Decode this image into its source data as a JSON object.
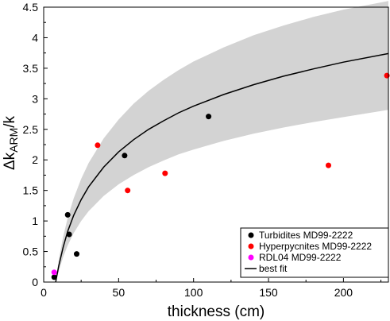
{
  "chart_data": {
    "type": "scatter",
    "xlabel": "thickness (cm)",
    "ylabel": "Δk",
    "ylabel_subscript": "ARM",
    "ylabel_suffix": "/k",
    "xlim": [
      0,
      230
    ],
    "ylim": [
      0,
      4.5
    ],
    "xticks": [
      "0",
      "50",
      "100",
      "150",
      "200"
    ],
    "yticks": [
      "0",
      "0.5",
      "1",
      "1.5",
      "2",
      "2.5",
      "3",
      "3.5",
      "4",
      "4.5"
    ],
    "grid": false,
    "legend_position": "bottom-right",
    "series": [
      {
        "name": "Turbidites MD99-2222",
        "color": "#000000",
        "points": [
          [
            7,
            0.08
          ],
          [
            16,
            1.1
          ],
          [
            17,
            0.78
          ],
          [
            22,
            0.46
          ],
          [
            54,
            2.07
          ],
          [
            110,
            2.71
          ]
        ]
      },
      {
        "name": "Hyperpycnites MD99-2222",
        "color": "#ff0000",
        "points": [
          [
            36,
            2.24
          ],
          [
            56,
            1.5
          ],
          [
            81,
            1.78
          ],
          [
            190,
            1.91
          ],
          [
            229,
            3.38
          ]
        ]
      },
      {
        "name": "RDL04 MD99-2222",
        "color": "#ff00ff",
        "points": [
          [
            7,
            0.16
          ]
        ]
      }
    ],
    "fit": {
      "name": "best fit",
      "color": "#000000",
      "x": [
        8,
        10,
        13,
        16,
        20,
        25,
        30,
        40,
        50,
        60,
        70,
        80,
        90,
        100,
        120,
        140,
        160,
        180,
        200,
        230
      ],
      "y": [
        0.0,
        0.26,
        0.57,
        0.83,
        1.09,
        1.35,
        1.56,
        1.88,
        2.13,
        2.33,
        2.5,
        2.64,
        2.77,
        2.88,
        3.07,
        3.23,
        3.37,
        3.49,
        3.6,
        3.74
      ],
      "band_upper": [
        0.0,
        0.36,
        0.74,
        1.05,
        1.37,
        1.69,
        1.95,
        2.35,
        2.66,
        2.92,
        3.13,
        3.31,
        3.47,
        3.61,
        3.84,
        4.04,
        4.2,
        4.34,
        4.46,
        4.6
      ],
      "band_lower": [
        0.0,
        0.18,
        0.41,
        0.6,
        0.8,
        1.0,
        1.16,
        1.41,
        1.6,
        1.75,
        1.88,
        1.99,
        2.09,
        2.17,
        2.31,
        2.43,
        2.53,
        2.62,
        2.7,
        2.82
      ],
      "band_color": "#d3d3d3"
    }
  }
}
